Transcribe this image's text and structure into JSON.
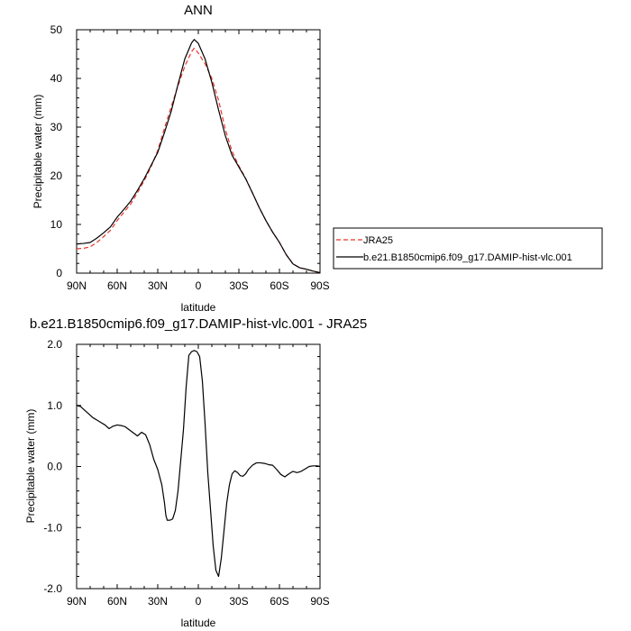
{
  "chart_data": [
    {
      "type": "line",
      "title": "ANN",
      "xlabel": "latitude",
      "ylabel": "Precipitable water (mm)",
      "xlim": [
        90,
        -90
      ],
      "ylim": [
        0,
        50
      ],
      "xticks": [
        90,
        60,
        30,
        0,
        -30,
        -60,
        -90
      ],
      "xtick_labels": [
        "90N",
        "60N",
        "30N",
        "0",
        "30S",
        "60S",
        "90S"
      ],
      "yticks": [
        0,
        10,
        20,
        30,
        40,
        50
      ],
      "ytick_labels": [
        "0",
        "10",
        "20",
        "30",
        "40",
        "50"
      ],
      "legend_position": "right",
      "series": [
        {
          "name": "JRA25",
          "color": "#e8342a",
          "dash": "dashed",
          "x": [
            90,
            85,
            80,
            75,
            70,
            65,
            60,
            55,
            50,
            45,
            40,
            35,
            30,
            25,
            20,
            15,
            10,
            5,
            3,
            0,
            -5,
            -10,
            -15,
            -20,
            -25,
            -30,
            -35,
            -40,
            -45,
            -50,
            -55,
            -60,
            -65,
            -70,
            -75,
            -80,
            -85,
            -90
          ],
          "y": [
            5,
            5.1,
            5.4,
            6.3,
            7.5,
            8.8,
            10.8,
            12.5,
            14.2,
            16.5,
            19,
            21.8,
            25.2,
            29.8,
            34.2,
            38.5,
            42.5,
            45.5,
            46.2,
            45.2,
            43,
            40,
            35.5,
            29.5,
            25,
            22,
            19.5,
            16.5,
            13.5,
            10.8,
            8.4,
            6.3,
            3.8,
            1.9,
            1.1,
            0.8,
            0.4,
            0.1
          ]
        },
        {
          "name": "b.e21.B1850cmip6.f09_g17.DAMIP-hist-vlc.001",
          "color": "#000000",
          "dash": "solid",
          "x": [
            90,
            85,
            80,
            75,
            70,
            65,
            60,
            55,
            50,
            45,
            40,
            35,
            30,
            25,
            20,
            15,
            10,
            5,
            3,
            0,
            -5,
            -10,
            -15,
            -20,
            -25,
            -30,
            -35,
            -40,
            -45,
            -50,
            -55,
            -60,
            -65,
            -70,
            -75,
            -80,
            -85,
            -90
          ],
          "y": [
            6,
            6.1,
            6.3,
            7.2,
            8.3,
            9.5,
            11.5,
            13.1,
            14.8,
            17,
            19.4,
            22.1,
            24.8,
            28.9,
            33.3,
            38.8,
            44,
            47.3,
            48,
            47.2,
            44,
            39.2,
            33.5,
            28.2,
            24.2,
            21.8,
            19.4,
            16.5,
            13.5,
            10.8,
            8.4,
            6.3,
            3.8,
            1.9,
            1.1,
            0.8,
            0.4,
            0.1
          ]
        }
      ]
    },
    {
      "type": "line",
      "title": "b.e21.B1850cmip6.f09_g17.DAMIP-hist-vlc.001 - JRA25",
      "xlabel": "latitude",
      "ylabel": "Precipitable water (mm)",
      "xlim": [
        90,
        -90
      ],
      "ylim": [
        -2.0,
        2.0
      ],
      "xticks": [
        90,
        60,
        30,
        0,
        -30,
        -60,
        -90
      ],
      "xtick_labels": [
        "90N",
        "60N",
        "30N",
        "0",
        "30S",
        "60S",
        "90S"
      ],
      "yticks": [
        2.0,
        1.0,
        0.0,
        -1.0,
        -2.0
      ],
      "ytick_labels": [
        "2.0",
        "1.0",
        "0.0",
        "-1.0",
        "-2.0"
      ],
      "series": [
        {
          "color": "#000000",
          "dash": "solid",
          "x": [
            90,
            87,
            84,
            81,
            78,
            75,
            72,
            69,
            66,
            63,
            60,
            57,
            54,
            51,
            48,
            45,
            42,
            39,
            36,
            33,
            30,
            27,
            25,
            24,
            23,
            21,
            19,
            17,
            15,
            13,
            11,
            9,
            7,
            5,
            3,
            1,
            -1,
            -3,
            -5,
            -7,
            -9,
            -11,
            -13,
            -15,
            -17,
            -19,
            -21,
            -23,
            -25,
            -27,
            -29,
            -31,
            -33,
            -35,
            -37,
            -40,
            -43,
            -46,
            -49,
            -52,
            -55,
            -58,
            -61,
            -64,
            -67,
            -70,
            -73,
            -76,
            -79,
            -82,
            -85,
            -88,
            -90
          ],
          "y": [
            1.0,
            0.98,
            0.92,
            0.86,
            0.8,
            0.76,
            0.72,
            0.68,
            0.62,
            0.66,
            0.68,
            0.67,
            0.65,
            0.6,
            0.55,
            0.5,
            0.56,
            0.52,
            0.36,
            0.12,
            -0.05,
            -0.3,
            -0.6,
            -0.8,
            -0.88,
            -0.88,
            -0.86,
            -0.72,
            -0.4,
            0.1,
            0.6,
            1.3,
            1.82,
            1.88,
            1.9,
            1.88,
            1.8,
            1.4,
            0.7,
            -0.1,
            -0.7,
            -1.3,
            -1.7,
            -1.8,
            -1.5,
            -1.05,
            -0.6,
            -0.3,
            -0.12,
            -0.07,
            -0.1,
            -0.15,
            -0.16,
            -0.12,
            -0.05,
            0.02,
            0.06,
            0.06,
            0.05,
            0.03,
            0.02,
            -0.05,
            -0.13,
            -0.17,
            -0.12,
            -0.08,
            -0.1,
            -0.08,
            -0.04,
            0.0,
            0.01,
            0.01,
            0.0
          ]
        }
      ]
    }
  ]
}
